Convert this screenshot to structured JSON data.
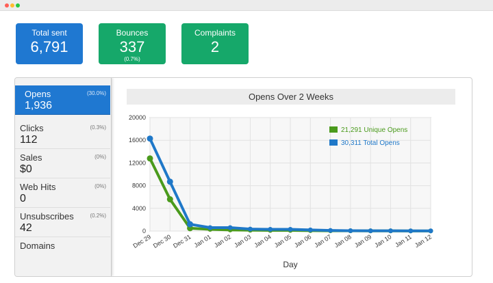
{
  "window": {
    "dots": [
      {
        "name": "close",
        "color": "#ff5f57"
      },
      {
        "name": "minimize",
        "color": "#febc2e"
      },
      {
        "name": "zoom",
        "color": "#28c840"
      }
    ]
  },
  "stats": [
    {
      "key": "total-sent",
      "label": "Total sent",
      "value": "6,791",
      "sub": "",
      "color": "#1f78d1"
    },
    {
      "key": "bounces",
      "label": "Bounces",
      "value": "337",
      "sub": "(0.7%)",
      "color": "#16a86a"
    },
    {
      "key": "complaints",
      "label": "Complaints",
      "value": "2",
      "sub": "",
      "color": "#16a86a"
    }
  ],
  "sidebar": {
    "items": [
      {
        "key": "opens",
        "label": "Opens",
        "percent": "(30.0%)",
        "value": "1,936",
        "active": true
      },
      {
        "key": "clicks",
        "label": "Clicks",
        "percent": "(0.3%)",
        "value": "112",
        "active": false
      },
      {
        "key": "sales",
        "label": "Sales",
        "percent": "(0%)",
        "value": "$0",
        "active": false
      },
      {
        "key": "web-hits",
        "label": "Web Hits",
        "percent": "(0%)",
        "value": "0",
        "active": false
      },
      {
        "key": "unsubscribes",
        "label": "Unsubscribes",
        "percent": "(0.2%)",
        "value": "42",
        "active": false
      },
      {
        "key": "domains",
        "label": "Domains",
        "percent": "",
        "value": "",
        "active": false
      }
    ]
  },
  "chart_data": {
    "type": "line",
    "title": "Opens Over 2 Weeks",
    "xlabel": "Day",
    "ylabel": "",
    "categories": [
      "Dec 29",
      "Dec 30",
      "Dec 31",
      "Jan 01",
      "Jan 02",
      "Jan 03",
      "Jan 04",
      "Jan 05",
      "Jan 06",
      "Jan 07",
      "Jan 08",
      "Jan 09",
      "Jan 10",
      "Jan 11",
      "Jan 12"
    ],
    "ylim": [
      0,
      20000
    ],
    "yticks": [
      0,
      4000,
      8000,
      12000,
      16000,
      20000
    ],
    "grid": true,
    "legend_position": "top-right",
    "series": [
      {
        "name": "21,291 Unique Opens",
        "color": "#4a9a1c",
        "values": [
          12800,
          5600,
          500,
          300,
          200,
          150,
          120,
          120,
          80,
          50,
          40,
          30,
          30,
          20,
          20
        ]
      },
      {
        "name": "30,311 Total Opens",
        "color": "#1f78c8",
        "values": [
          16300,
          8700,
          1200,
          600,
          600,
          350,
          300,
          300,
          200,
          100,
          60,
          40,
          40,
          30,
          30
        ]
      }
    ]
  }
}
